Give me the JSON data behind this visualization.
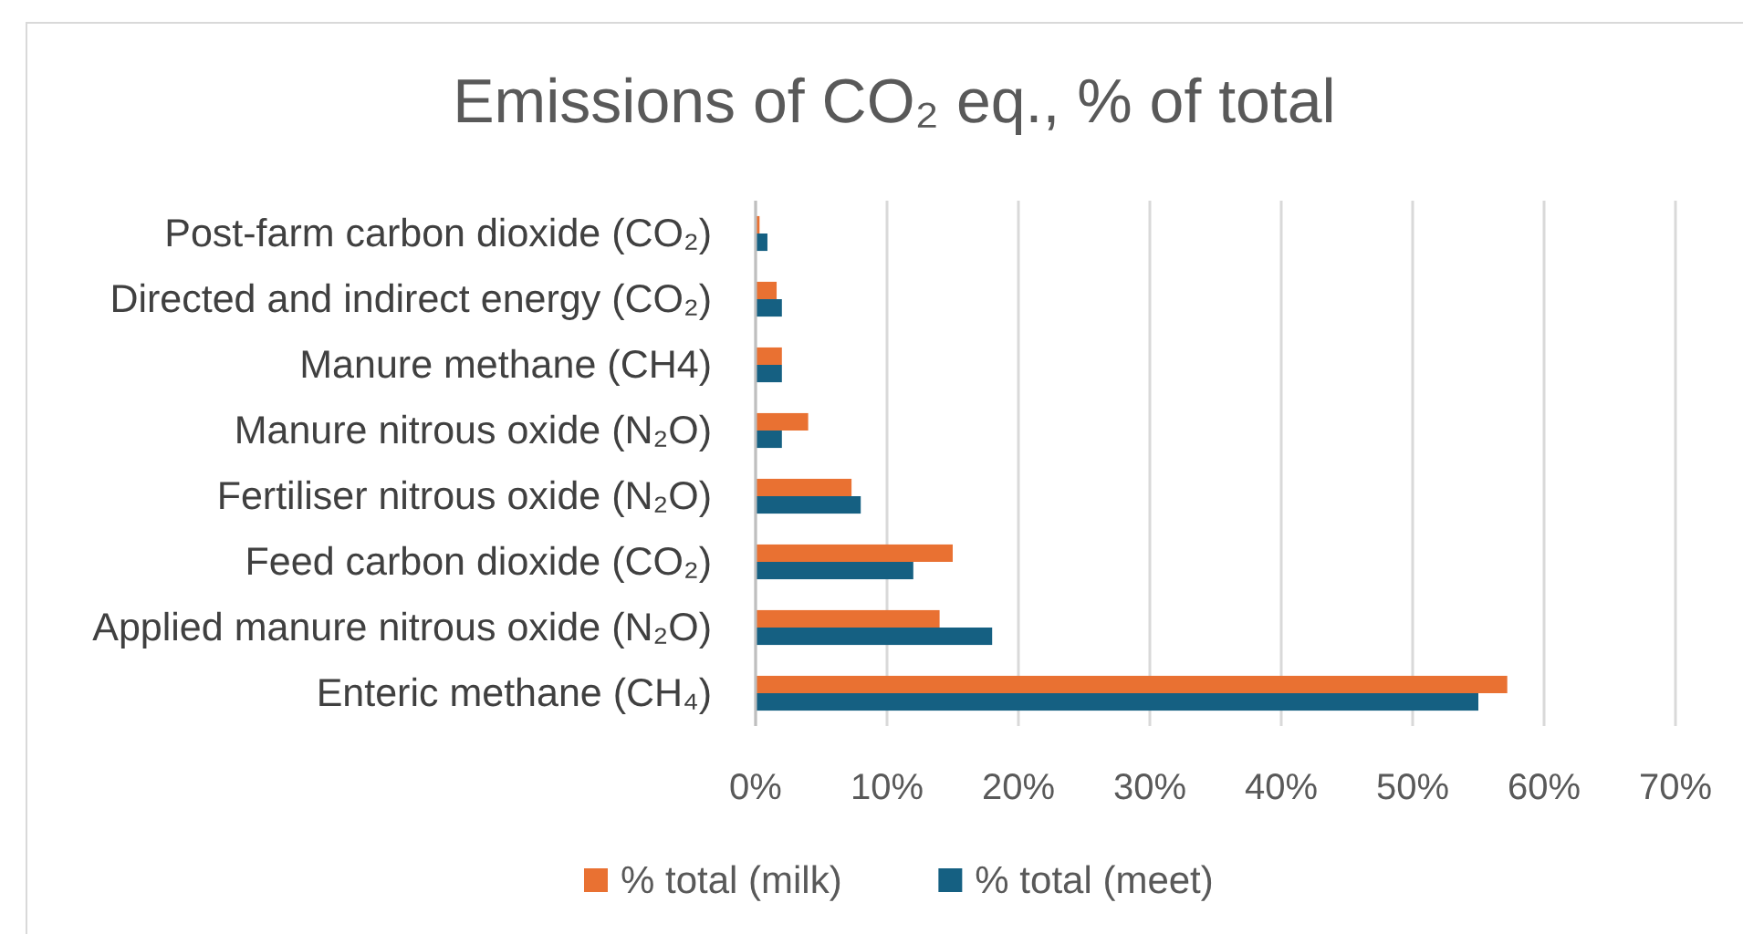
{
  "chart_data": {
    "type": "bar",
    "orientation": "horizontal",
    "title": "Emissions of CO₂ eq., % of total",
    "categories": [
      "Post-farm carbon dioxide (CO₂)",
      "Directed and indirect energy (CO₂)",
      "Manure methane (CH4)",
      "Manure nitrous oxide (N₂O)",
      "Fertiliser nitrous oxide (N₂O)",
      "Feed carbon dioxide (CO₂)",
      "Applied manure nitrous oxide (N₂O)",
      "Enteric methane (CH₄)"
    ],
    "series": [
      {
        "name": "% total (milk)",
        "color": "#e97132",
        "values": [
          0.3,
          1.6,
          2,
          4,
          7.3,
          15,
          14,
          57.2
        ]
      },
      {
        "name": "% total (meet)",
        "color": "#156082",
        "values": [
          0.9,
          2,
          2,
          2,
          8,
          12,
          18,
          55
        ]
      }
    ],
    "xlim": [
      0,
      70
    ],
    "xticks": [
      {
        "value": 0,
        "label": "0%"
      },
      {
        "value": 10,
        "label": "10%"
      },
      {
        "value": 20,
        "label": "20%"
      },
      {
        "value": 30,
        "label": "30%"
      },
      {
        "value": 40,
        "label": "40%"
      },
      {
        "value": 50,
        "label": "50%"
      },
      {
        "value": 60,
        "label": "60%"
      },
      {
        "value": 70,
        "label": "70%"
      }
    ],
    "grid": "x",
    "legend": "bottom"
  }
}
